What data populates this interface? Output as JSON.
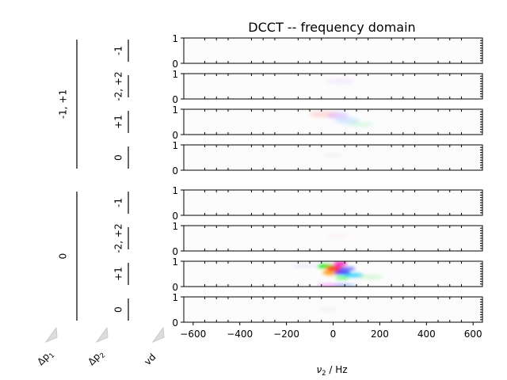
{
  "chart_data": {
    "type": "heatmap",
    "title": "DCCT -- frequency domain",
    "xlabel_prefix": "ν",
    "xlabel_sub": "2",
    "xlabel_suffix": " / Hz",
    "xlim": [
      -640,
      640
    ],
    "xticks": [
      -600,
      -400,
      -200,
      0,
      200,
      400,
      600
    ],
    "xticklabels": [
      "−600",
      "−400",
      "−200",
      "0",
      "200",
      "400",
      "600"
    ],
    "ylim": [
      0,
      1
    ],
    "yticklabels": [
      "0",
      "1"
    ],
    "outer_groups": [
      {
        "label": "-1, +1",
        "rows": [
          0,
          1,
          2,
          3
        ]
      },
      {
        "label": "0",
        "rows": [
          4,
          5,
          6,
          7
        ]
      }
    ],
    "panels": [
      {
        "row_label": "-1",
        "blobs": []
      },
      {
        "row_label": "-2, +2",
        "blobs": [
          {
            "x": 30,
            "y": 0.7,
            "sx": 60,
            "sy": 0.12,
            "color": "#c080ff",
            "opacity": 0.12
          }
        ]
      },
      {
        "row_label": "+1",
        "blobs": [
          {
            "x": -40,
            "y": 0.8,
            "sx": 60,
            "sy": 0.12,
            "color": "#ffb0b0",
            "opacity": 0.45
          },
          {
            "x": 20,
            "y": 0.75,
            "sx": 45,
            "sy": 0.14,
            "color": "#d0a0ff",
            "opacity": 0.45
          },
          {
            "x": 60,
            "y": 0.55,
            "sx": 50,
            "sy": 0.14,
            "color": "#a0d0ff",
            "opacity": 0.4
          },
          {
            "x": 120,
            "y": 0.4,
            "sx": 55,
            "sy": 0.1,
            "color": "#a0f0c0",
            "opacity": 0.35
          }
        ]
      },
      {
        "row_label": "0",
        "blobs": [
          {
            "x": 0,
            "y": 0.6,
            "sx": 40,
            "sy": 0.1,
            "color": "#c0c0c0",
            "opacity": 0.15
          }
        ]
      },
      {
        "row_label": "-1",
        "blobs": []
      },
      {
        "row_label": "-2, +2",
        "blobs": [
          {
            "x": 20,
            "y": 0.6,
            "sx": 50,
            "sy": 0.12,
            "color": "#ffc0e0",
            "opacity": 0.15
          }
        ]
      },
      {
        "row_label": "+1",
        "blobs": [
          {
            "x": -120,
            "y": 0.82,
            "sx": 60,
            "sy": 0.07,
            "color": "#e0e0ff",
            "opacity": 0.6
          },
          {
            "x": -30,
            "y": 0.8,
            "sx": 40,
            "sy": 0.08,
            "color": "#00e000",
            "opacity": 0.9
          },
          {
            "x": 10,
            "y": 0.72,
            "sx": 40,
            "sy": 0.1,
            "color": "#ff2020",
            "opacity": 0.95
          },
          {
            "x": -10,
            "y": 0.55,
            "sx": 35,
            "sy": 0.1,
            "color": "#ff9000",
            "opacity": 0.85
          },
          {
            "x": 30,
            "y": 0.9,
            "sx": 30,
            "sy": 0.08,
            "color": "#ff00c0",
            "opacity": 0.9
          },
          {
            "x": 60,
            "y": 0.7,
            "sx": 35,
            "sy": 0.08,
            "color": "#6060ff",
            "opacity": 0.85
          },
          {
            "x": 40,
            "y": 0.55,
            "sx": 35,
            "sy": 0.09,
            "color": "#0000ff",
            "opacity": 0.8
          },
          {
            "x": 90,
            "y": 0.45,
            "sx": 40,
            "sy": 0.08,
            "color": "#00c8ff",
            "opacity": 0.8
          },
          {
            "x": 40,
            "y": 0.35,
            "sx": 30,
            "sy": 0.08,
            "color": "#40ff40",
            "opacity": 0.7
          },
          {
            "x": 160,
            "y": 0.38,
            "sx": 55,
            "sy": 0.08,
            "color": "#a0f0a0",
            "opacity": 0.45
          },
          {
            "x": 0,
            "y": 0.05,
            "sx": 70,
            "sy": 0.05,
            "color": "#ff60ff",
            "opacity": 0.7
          },
          {
            "x": 50,
            "y": 0.05,
            "sx": 50,
            "sy": 0.05,
            "color": "#60a0ff",
            "opacity": 0.6
          }
        ]
      },
      {
        "row_label": "0",
        "blobs": [
          {
            "x": -20,
            "y": 0.5,
            "sx": 40,
            "sy": 0.1,
            "color": "#c0c0c0",
            "opacity": 0.12
          }
        ]
      }
    ],
    "coherence_labels": [
      {
        "text": "Δp",
        "sub": "1"
      },
      {
        "text": "Δp",
        "sub": "2"
      },
      {
        "text": "vd",
        "sub": ""
      }
    ],
    "grid": false,
    "legend": "none"
  }
}
